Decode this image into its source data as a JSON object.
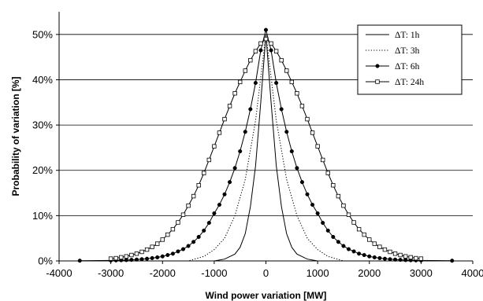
{
  "chart_data": {
    "type": "line",
    "title": "",
    "xlabel": "Wind power variation [MW]",
    "ylabel": "Probability of variation [%]",
    "xlim": [
      -4000,
      4000
    ],
    "ylim": [
      0,
      55
    ],
    "xticks": [
      -4000,
      -3000,
      -2000,
      -1000,
      0,
      1000,
      2000,
      3000,
      4000
    ],
    "xtick_labels": [
      "-4000",
      "-3000",
      "-2000",
      "-1000",
      "0",
      "1000",
      "2000",
      "3000",
      "4000"
    ],
    "yticks": [
      0,
      10,
      20,
      30,
      40,
      50
    ],
    "ytick_labels": [
      "0%",
      "10%",
      "20%",
      "30%",
      "40%",
      "50%"
    ],
    "grid": "horizontal",
    "legend_position": "top-right",
    "series": [
      {
        "name": "ΔT: 1h",
        "style": "solid",
        "marker": "none",
        "x": [
          -3600,
          -1000,
          -800,
          -600,
          -500,
          -400,
          -300,
          -200,
          -100,
          0,
          100,
          200,
          300,
          400,
          500,
          600,
          800,
          1000,
          3600
        ],
        "y": [
          0,
          0,
          0.4,
          1.5,
          3,
          6,
          12,
          21,
          35,
          50,
          35,
          21,
          12,
          6,
          3,
          1.5,
          0.4,
          0,
          0
        ]
      },
      {
        "name": "ΔT: 3h",
        "style": "dotted",
        "marker": "none",
        "x": [
          -3600,
          -1500,
          -1200,
          -1000,
          -800,
          -600,
          -400,
          -200,
          0,
          200,
          400,
          600,
          800,
          1000,
          1200,
          1500,
          3600
        ],
        "y": [
          0,
          0,
          1,
          2.5,
          5,
          10,
          18,
          31,
          50,
          31,
          18,
          10,
          5,
          2.5,
          1,
          0,
          0
        ]
      },
      {
        "name": "ΔT: 6h",
        "style": "solid",
        "marker": "filled-circle",
        "x": [
          -3600,
          -3000,
          -2900,
          -2800,
          -2700,
          -2600,
          -2500,
          -2400,
          -2300,
          -2200,
          -2100,
          -2000,
          -1900,
          -1800,
          -1700,
          -1600,
          -1500,
          -1400,
          -1300,
          -1200,
          -1100,
          -1000,
          -900,
          -800,
          -700,
          -600,
          -500,
          -400,
          -300,
          -200,
          -100,
          0,
          100,
          200,
          300,
          400,
          500,
          600,
          700,
          800,
          900,
          1000,
          1100,
          1200,
          1300,
          1400,
          1500,
          1600,
          1700,
          1800,
          1900,
          2000,
          2100,
          2200,
          2300,
          2400,
          2500,
          2600,
          2700,
          2800,
          2900,
          3000,
          3600
        ],
        "y": [
          0.05,
          0.1,
          0.12,
          0.15,
          0.19,
          0.24,
          0.3,
          0.38,
          0.48,
          0.62,
          0.79,
          1.0,
          1.3,
          1.6,
          2.1,
          2.6,
          3.3,
          4.2,
          5.3,
          6.7,
          8.4,
          10.5,
          12.4,
          14.7,
          17.4,
          20.5,
          24.2,
          28.5,
          33.5,
          39.3,
          46.5,
          51,
          46.5,
          39.3,
          33.5,
          28.5,
          24.2,
          20.5,
          17.4,
          14.7,
          12.4,
          10.5,
          8.4,
          6.7,
          5.3,
          4.2,
          3.3,
          2.6,
          2.1,
          1.6,
          1.3,
          1.0,
          0.79,
          0.62,
          0.48,
          0.38,
          0.3,
          0.24,
          0.19,
          0.15,
          0.12,
          0.1,
          0.05
        ]
      },
      {
        "name": "ΔT: 24h",
        "style": "solid",
        "marker": "open-square",
        "x": [
          -3000,
          -2900,
          -2800,
          -2700,
          -2600,
          -2500,
          -2400,
          -2300,
          -2200,
          -2100,
          -2000,
          -1900,
          -1800,
          -1700,
          -1600,
          -1500,
          -1400,
          -1300,
          -1200,
          -1100,
          -1000,
          -900,
          -800,
          -700,
          -600,
          -500,
          -400,
          -300,
          -200,
          -100,
          0,
          100,
          200,
          300,
          400,
          500,
          600,
          700,
          800,
          900,
          1000,
          1100,
          1200,
          1300,
          1400,
          1500,
          1600,
          1700,
          1800,
          1900,
          2000,
          2100,
          2200,
          2300,
          2400,
          2500,
          2600,
          2700,
          2800,
          2900,
          3000
        ],
        "y": [
          0.5,
          0.6,
          0.8,
          1.0,
          1.3,
          1.6,
          2.0,
          2.5,
          3.1,
          3.8,
          4.7,
          5.8,
          7.0,
          8.5,
          10.2,
          12.2,
          14.3,
          16.7,
          19.4,
          22.3,
          25.3,
          28.3,
          31.3,
          34.2,
          37.0,
          39.5,
          42.0,
          44.3,
          46.3,
          48.0,
          49,
          48.0,
          46.3,
          44.3,
          42.0,
          39.5,
          37.0,
          34.2,
          31.3,
          28.3,
          25.3,
          22.3,
          19.4,
          16.7,
          14.3,
          12.2,
          10.2,
          8.5,
          7.0,
          5.8,
          4.7,
          3.8,
          3.1,
          2.5,
          2.0,
          1.6,
          1.3,
          1.0,
          0.8,
          0.6,
          0.5
        ]
      }
    ]
  }
}
